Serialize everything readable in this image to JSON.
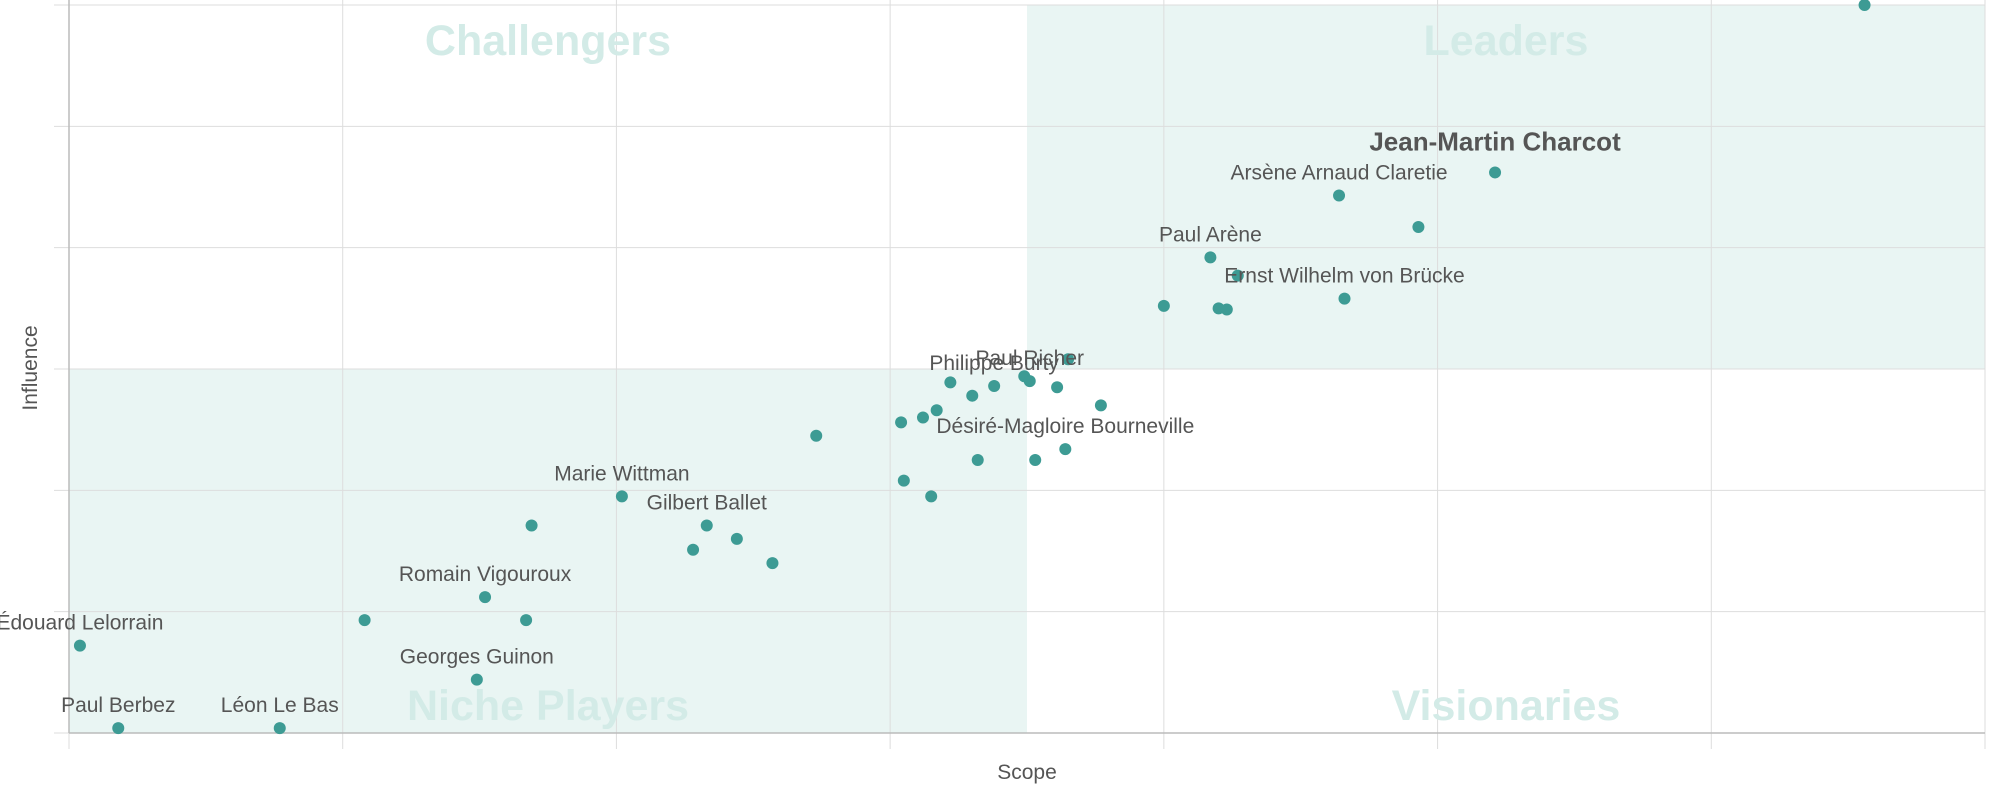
{
  "chart_data": {
    "type": "scatter",
    "xlabel": "Scope",
    "ylabel": "Influence",
    "xlim": [
      0,
      7
    ],
    "ylim": [
      0,
      6
    ],
    "grid": true,
    "colors": {
      "point": "#3d9b94",
      "quadrant_fill": "#e9f5f3",
      "quadrant_label": "#d3ebe7",
      "grid": "#dddddd",
      "axis": "#bbbbbb",
      "text": "#555555"
    },
    "quadrants": [
      {
        "name": "Challengers",
        "position": "top-left"
      },
      {
        "name": "Leaders",
        "position": "top-right"
      },
      {
        "name": "Niche Players",
        "position": "bottom-left"
      },
      {
        "name": "Visionaries",
        "position": "bottom-right"
      }
    ],
    "points": [
      {
        "x": 6.56,
        "y": 6.0,
        "label": ""
      },
      {
        "x": 5.21,
        "y": 4.62,
        "label": "Jean-Martin Charcot",
        "bold": true
      },
      {
        "x": 4.64,
        "y": 4.43,
        "label": "Arsène Arnaud Claretie"
      },
      {
        "x": 4.93,
        "y": 4.17,
        "label": ""
      },
      {
        "x": 4.17,
        "y": 3.92,
        "label": "Paul Arène"
      },
      {
        "x": 4.27,
        "y": 3.77,
        "label": ""
      },
      {
        "x": 4.66,
        "y": 3.58,
        "label": "Ernst Wilhelm von Brücke"
      },
      {
        "x": 4.0,
        "y": 3.52,
        "label": ""
      },
      {
        "x": 4.2,
        "y": 3.5,
        "label": ""
      },
      {
        "x": 4.23,
        "y": 3.49,
        "label": ""
      },
      {
        "x": 3.65,
        "y": 3.08,
        "label": ""
      },
      {
        "x": 3.49,
        "y": 2.94,
        "label": ""
      },
      {
        "x": 3.51,
        "y": 2.9,
        "label": "Paul Richer"
      },
      {
        "x": 3.61,
        "y": 2.85,
        "label": ""
      },
      {
        "x": 3.22,
        "y": 2.89,
        "label": ""
      },
      {
        "x": 3.38,
        "y": 2.86,
        "label": "Philippe Burty"
      },
      {
        "x": 3.3,
        "y": 2.78,
        "label": ""
      },
      {
        "x": 3.77,
        "y": 2.7,
        "label": ""
      },
      {
        "x": 3.17,
        "y": 2.66,
        "label": ""
      },
      {
        "x": 3.12,
        "y": 2.6,
        "label": ""
      },
      {
        "x": 3.04,
        "y": 2.56,
        "label": ""
      },
      {
        "x": 2.73,
        "y": 2.45,
        "label": ""
      },
      {
        "x": 3.64,
        "y": 2.34,
        "label": "Désiré-Magloire Bourneville"
      },
      {
        "x": 3.32,
        "y": 2.25,
        "label": ""
      },
      {
        "x": 3.53,
        "y": 2.25,
        "label": ""
      },
      {
        "x": 3.05,
        "y": 2.08,
        "label": ""
      },
      {
        "x": 3.15,
        "y": 1.95,
        "label": ""
      },
      {
        "x": 2.02,
        "y": 1.95,
        "label": "Marie Wittman"
      },
      {
        "x": 1.69,
        "y": 1.71,
        "label": ""
      },
      {
        "x": 2.33,
        "y": 1.71,
        "label": "Gilbert Ballet"
      },
      {
        "x": 2.44,
        "y": 1.6,
        "label": ""
      },
      {
        "x": 2.28,
        "y": 1.51,
        "label": ""
      },
      {
        "x": 2.57,
        "y": 1.4,
        "label": ""
      },
      {
        "x": 1.52,
        "y": 1.12,
        "label": "Romain Vigouroux"
      },
      {
        "x": 1.08,
        "y": 0.93,
        "label": ""
      },
      {
        "x": 1.67,
        "y": 0.93,
        "label": ""
      },
      {
        "x": 0.04,
        "y": 0.72,
        "label": "Édouard Lelorrain"
      },
      {
        "x": 1.49,
        "y": 0.44,
        "label": "Georges Guinon"
      },
      {
        "x": 0.18,
        "y": 0.04,
        "label": "Paul Berbez"
      },
      {
        "x": 0.77,
        "y": 0.04,
        "label": "Léon Le Bas"
      }
    ]
  }
}
